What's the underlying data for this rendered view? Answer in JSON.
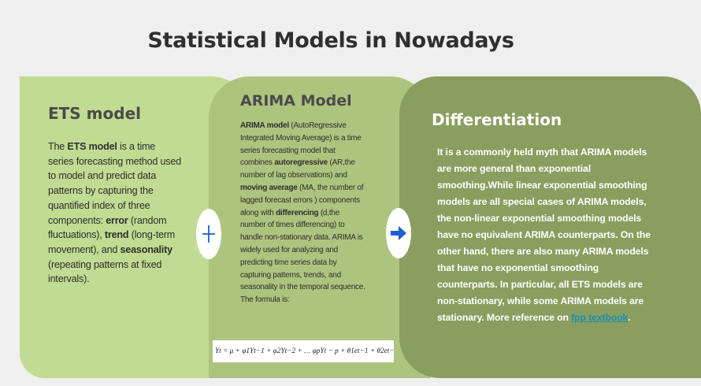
{
  "title": "Statistical Models in Nowadays",
  "ets": {
    "heading": "ETS model",
    "t1": "The ",
    "b1": "ETS model",
    "t2": " is a time series forecasting method used to model and predict data patterns by capturing the quantified index of three components: ",
    "b2": "error",
    "t3": " (random fluctuations), ",
    "b3": "trend",
    "t4": " (long-term movement), and ",
    "b4": "seasonality",
    "t5": " (repeating patterns at fixed intervals)."
  },
  "arima": {
    "heading": "ARIMA Model",
    "b1": "ARIMA model",
    "t1": " (AutoRegressive Integrated Moving Average) is a time series forecasting model that combines ",
    "b2": "autoregressive",
    "t2": " (AR,the number of lag observations) and ",
    "b3": "moving average",
    "t3": " (MA, the number of lagged forecast errors ) components along with ",
    "b4": "differencing",
    "t4": " (d,the number of times differencing) to handle non-stationary data. ARIMA is widely used for analyzing and predicting time series data by capturing patterns, trends, and seasonality in the temporal sequence. The formula is:",
    "formula": "Yt = μ + φ1Yt−1 + φ2Yt−2 + … φpYt − p + θ1et−1 + θ2et−2 + … + et"
  },
  "diff": {
    "heading": "Differentiation",
    "text": "It is a commonly held myth that ARIMA models are more general than exponential smoothing.While linear exponential smoothing models are all special cases of ARIMA models, the non-linear exponential smoothing models have no equivalent ARIMA counterparts. On the other hand, there are also many ARIMA models that have no exponential smoothing counterparts. In particular, all ETS models are non-stationary, while some ARIMA models are stationary. More reference on ",
    "link": "fpp textbook",
    "end": "."
  },
  "colors": {
    "ets_bg": "#c1db92",
    "arima_bg": "#adc47e",
    "diff_bg": "#8a9e5f",
    "icon_blue": "#1e5fd6",
    "link": "#1b8fb0"
  },
  "icons": {
    "plus": "plus-icon",
    "arrow": "arrow-right-icon"
  }
}
